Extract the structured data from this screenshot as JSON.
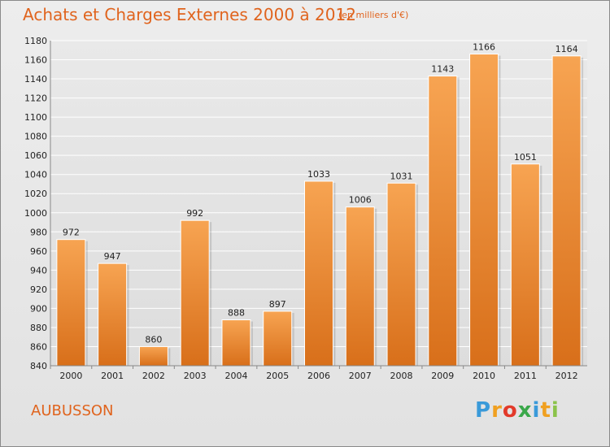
{
  "chart_data": {
    "type": "bar",
    "title": "Achats et Charges Externes 2000 à 2012",
    "unit": "(en milliers d'€)",
    "categories": [
      "2000",
      "2001",
      "2002",
      "2003",
      "2004",
      "2005",
      "2006",
      "2007",
      "2008",
      "2009",
      "2010",
      "2011",
      "2012"
    ],
    "values": [
      972,
      947,
      860,
      992,
      888,
      897,
      1033,
      1006,
      1031,
      1143,
      1166,
      1051,
      1164
    ],
    "ylim": [
      840,
      1180
    ],
    "yticks": [
      840,
      860,
      880,
      900,
      920,
      940,
      960,
      980,
      1000,
      1020,
      1040,
      1060,
      1080,
      1100,
      1120,
      1140,
      1160,
      1180
    ],
    "grid": true,
    "bar_color": "#f08c38"
  },
  "footer": {
    "city": "AUBUSSON",
    "logo_letters": [
      "P",
      "r",
      "o",
      "x",
      "i",
      "t",
      "i"
    ],
    "logo_colors": [
      "#3a9ad9",
      "#f0a020",
      "#e23a2a",
      "#3aa84a",
      "#3a9ad9",
      "#f0a020",
      "#8bc34a"
    ]
  }
}
